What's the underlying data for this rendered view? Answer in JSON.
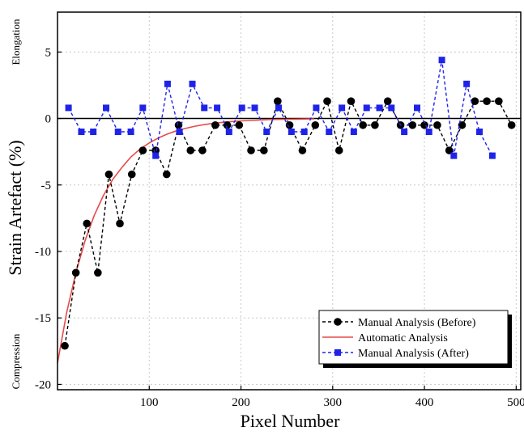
{
  "chart_data": {
    "type": "line",
    "title": "",
    "xlabel": "Pixel Number",
    "ylabel": "Strain Artefact (%)",
    "side_labels": {
      "top": "Elongation",
      "bottom": "Compression"
    },
    "xlim": [
      0,
      505
    ],
    "ylim": [
      -20.4,
      8
    ],
    "xticks": [
      100,
      200,
      300,
      400,
      500
    ],
    "yticks": [
      -20,
      -15,
      -10,
      -5,
      0,
      5
    ],
    "grid": true,
    "zero_line": true,
    "legend": {
      "position": "bottom-right"
    },
    "series": [
      {
        "name": "Manual Analysis (Before)",
        "style": "dashed-line-circle-markers",
        "color": "#000000",
        "x": [
          8,
          20,
          32,
          44,
          56,
          68,
          81,
          93,
          107,
          119,
          132,
          145,
          158,
          172,
          185,
          198,
          211,
          225,
          240,
          253,
          267,
          281,
          294,
          307,
          320,
          333,
          346,
          360,
          374,
          387,
          400,
          414,
          427,
          441,
          455,
          468,
          481,
          495
        ],
        "y": [
          -17.1,
          -11.6,
          -7.9,
          -11.6,
          -4.2,
          -7.9,
          -4.2,
          -2.4,
          -2.4,
          -4.2,
          -0.5,
          -2.4,
          -2.4,
          -0.5,
          -0.5,
          -0.5,
          -2.4,
          -2.4,
          1.3,
          -0.5,
          -2.4,
          -0.5,
          1.3,
          -2.4,
          1.3,
          -0.5,
          -0.5,
          1.3,
          -0.5,
          -0.5,
          -0.5,
          -0.5,
          -2.4,
          -0.5,
          1.3,
          1.3,
          1.3,
          -0.5
        ]
      },
      {
        "name": "Automatic Analysis",
        "style": "solid-line",
        "color": "#e84a4a",
        "model": "exponential",
        "x": [
          0,
          10,
          20,
          30,
          40,
          50,
          60,
          70,
          80,
          90,
          100,
          110,
          120,
          130,
          140,
          150,
          160,
          170,
          180,
          190,
          200,
          210,
          220,
          230,
          240,
          250,
          260,
          270,
          280
        ],
        "y": [
          -18.4,
          -14.6,
          -11.6,
          -9.2,
          -7.3,
          -5.8,
          -4.6,
          -3.7,
          -2.9,
          -2.3,
          -1.84,
          -1.46,
          -1.16,
          -0.92,
          -0.73,
          -0.58,
          -0.46,
          -0.37,
          -0.29,
          -0.23,
          -0.18,
          -0.15,
          -0.12,
          -0.09,
          -0.07,
          -0.06,
          -0.05,
          -0.04,
          -0.03
        ]
      },
      {
        "name": "Manual Analysis (After)",
        "style": "dashed-line-square-markers",
        "color": "#1f23e8",
        "x": [
          12,
          26,
          39,
          53,
          66,
          80,
          93,
          107,
          120,
          133,
          147,
          160,
          174,
          187,
          201,
          215,
          228,
          241,
          255,
          269,
          282,
          296,
          310,
          323,
          337,
          351,
          364,
          378,
          392,
          405,
          419,
          432,
          446,
          460,
          474
        ],
        "y": [
          0.8,
          -1.0,
          -1.0,
          0.8,
          -1.0,
          -1.0,
          0.8,
          -2.8,
          2.6,
          -1.0,
          2.6,
          0.8,
          0.8,
          -1.0,
          0.8,
          0.8,
          -1.0,
          0.8,
          -1.0,
          -1.0,
          0.8,
          -1.0,
          0.8,
          -1.0,
          0.8,
          0.8,
          0.8,
          -1.0,
          0.8,
          -1.0,
          4.4,
          -2.8,
          2.6,
          -1.0,
          -2.8
        ]
      }
    ]
  }
}
